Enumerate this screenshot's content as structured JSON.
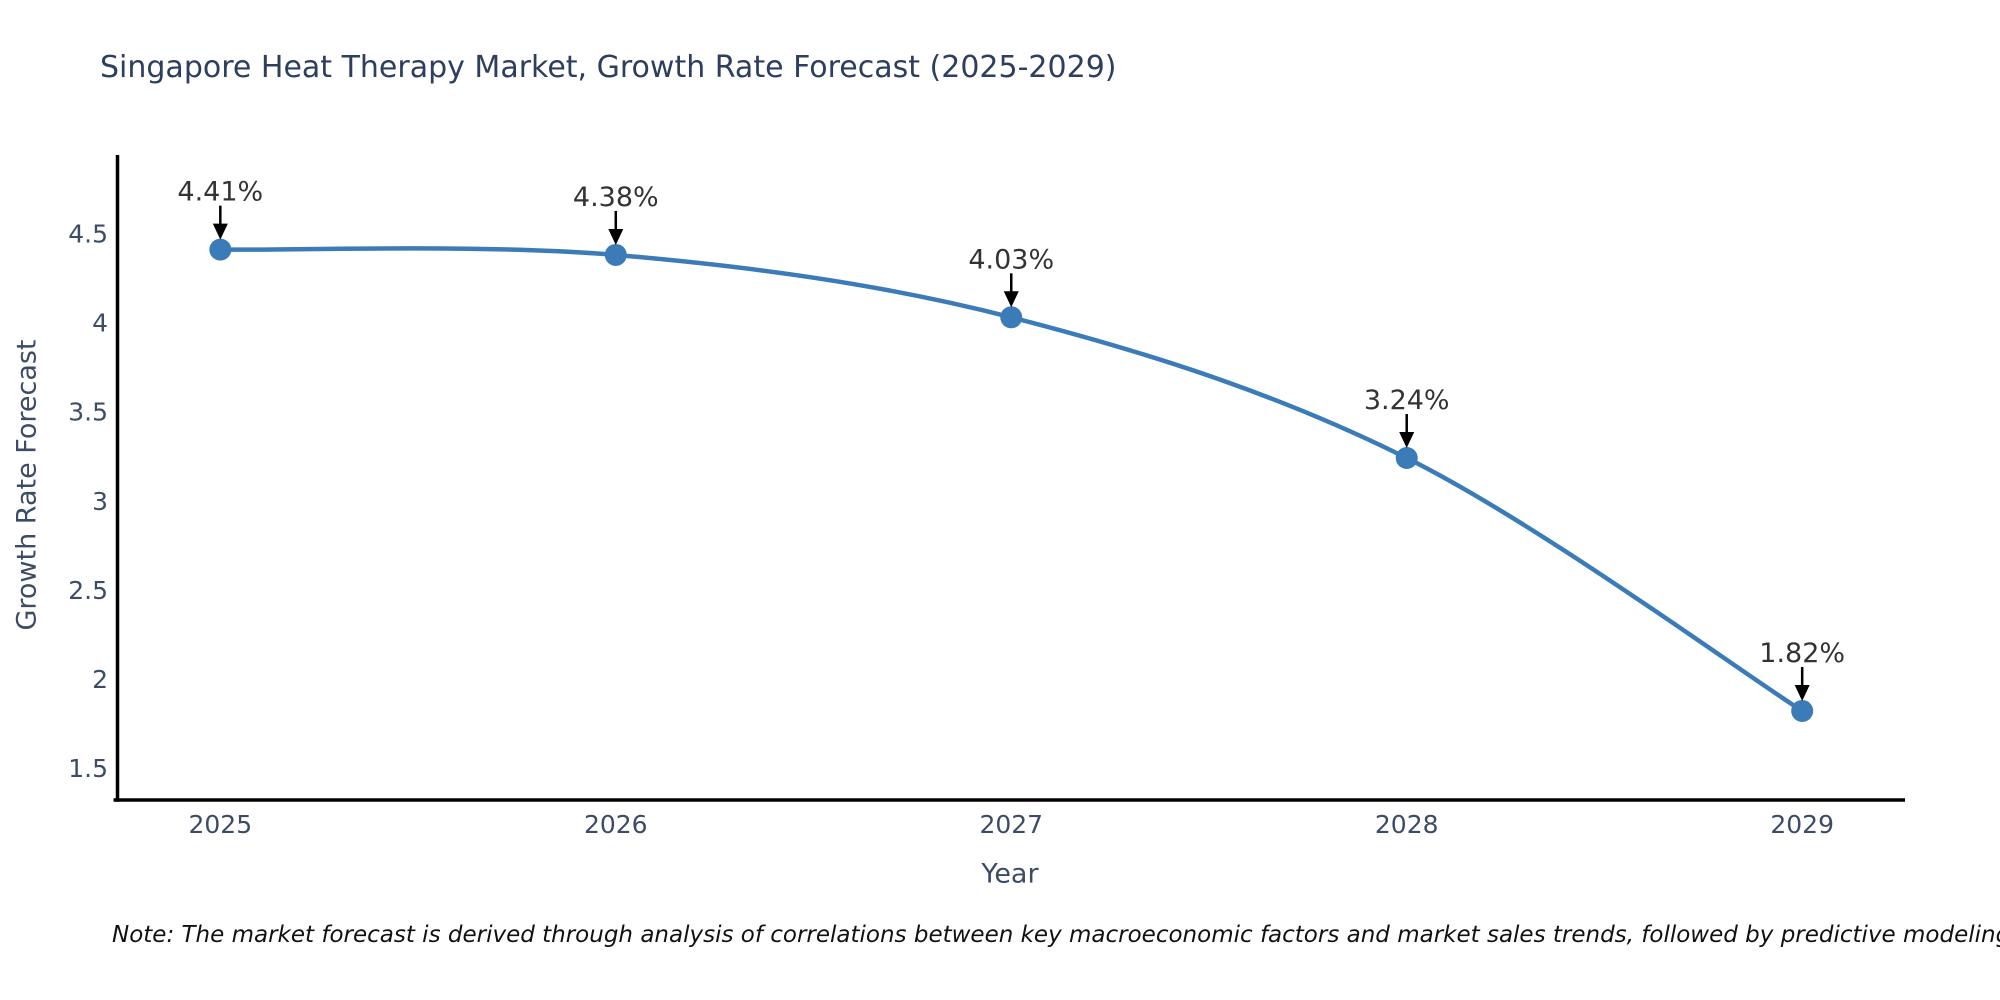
{
  "title": "Singapore Heat Therapy Market, Growth Rate Forecast (2025-2029)",
  "note": "Note: The market forecast is derived through analysis of correlations between key macroeconomic factors and market sales trends, followed by predictive modeling to project future sales",
  "chart_data": {
    "type": "line",
    "title": "Singapore Heat Therapy Market, Growth Rate Forecast (2025-2029)",
    "xlabel": "Year",
    "ylabel": "Growth Rate Forecast",
    "x": [
      2025,
      2026,
      2027,
      2028,
      2029
    ],
    "values": [
      4.41,
      4.38,
      4.03,
      3.24,
      1.82
    ],
    "point_labels": [
      "4.41%",
      "4.38%",
      "4.03%",
      "3.24%",
      "1.82%"
    ],
    "xticks": [
      2025,
      2026,
      2027,
      2028,
      2029
    ],
    "yticks": [
      1.5,
      2,
      2.5,
      3,
      3.5,
      4,
      4.5
    ],
    "xlim": [
      2024.74,
      2029.26
    ],
    "ylim": [
      1.32,
      4.93
    ],
    "grid": false,
    "legend": "none",
    "line_color": "#3b7cb8",
    "marker_color": "#3b7cb8",
    "arrow_color": "#000000",
    "axis_color": "#000000",
    "tick_color": "#3d4c66",
    "annotation_color": "#333333"
  }
}
